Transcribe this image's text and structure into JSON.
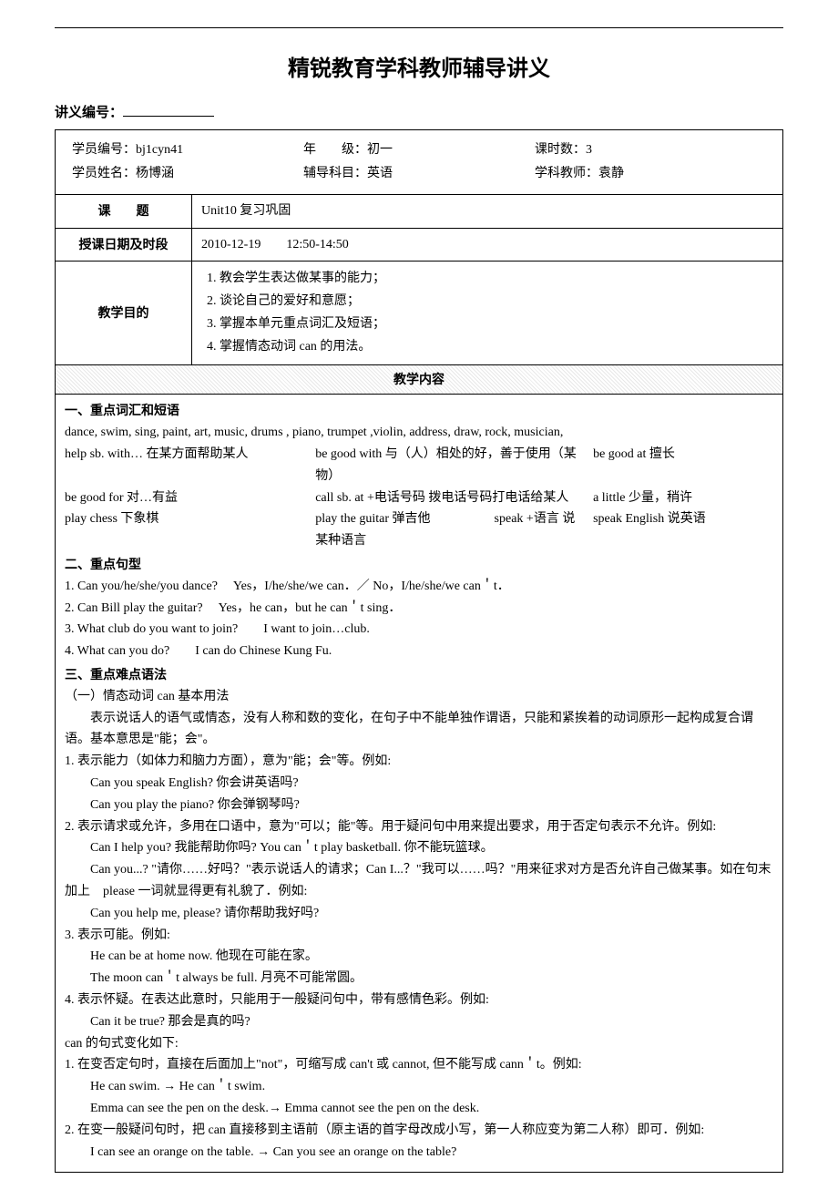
{
  "title": "精锐教育学科教师辅导讲义",
  "serial_label": "讲义编号：",
  "info": {
    "student_id_label": "学员编号：",
    "student_id": "bj1cyn41",
    "grade_label": "年　　级：",
    "grade": "初一",
    "hours_label": "课时数：",
    "hours": "3",
    "student_name_label": "学员姓名：",
    "student_name": "杨博涵",
    "subject_label": "辅导科目：",
    "subject": "英语",
    "teacher_label": "学科教师：",
    "teacher": "袁静"
  },
  "row_topic": {
    "label": "课　　题",
    "value": "Unit10 复习巩固"
  },
  "row_time": {
    "label": "授课日期及时段",
    "value": "2010-12-19　　12:50-14:50"
  },
  "row_goal": {
    "label": "教学目的",
    "items": [
      "1.  教会学生表达做某事的能力；",
      "2.  谈论自己的爱好和意愿；",
      "3.  掌握本单元重点词汇及短语；",
      "4.  掌握情态动词 can 的用法。"
    ]
  },
  "section_header": "教学内容",
  "sec1": {
    "title": "一、重点词汇和短语",
    "vocab_line": "dance, swim, sing, paint, art, music, drums , piano, trumpet ,violin, address, draw, rock, musician,",
    "phrases": [
      [
        "help sb. with… 在某方面帮助某人",
        "be good with 与（人）相处的好，善于使用（某物）",
        "be good at 擅长"
      ],
      [
        "be good for 对…有益",
        "call sb. at +电话号码 拨电话号码打电话给某人",
        "a little 少量，稍许"
      ],
      [
        "play chess 下象棋",
        "play the guitar 弹吉他　　　　　speak +语言 说某种语言",
        "speak English 说英语"
      ]
    ]
  },
  "sec2": {
    "title": "二、重点句型",
    "lines": [
      "1. Can you/he/she/you dance?　 Yes，I/he/she/we can．／ No，I/he/she/we can＇t．",
      "2. Can Bill play the guitar?　 Yes，he can，but he can＇t sing．",
      "3. What club do you want to join?　　I want to join…club.",
      "4. What can you do?　　I can do Chinese Kung Fu."
    ]
  },
  "sec3": {
    "title": "三、重点难点语法",
    "sub1_title": "（一）情态动词 can 基本用法",
    "sub1_intro": "表示说话人的语气或情态，没有人称和数的变化，在句子中不能单独作谓语，只能和紧挨着的动词原形一起构成复合谓语。基本意思是\"能；会\"。",
    "items": [
      {
        "head": "1.  表示能力（如体力和脑力方面），意为\"能；会\"等。例如:",
        "body": [
          "Can you speak English? 你会讲英语吗?",
          "Can you play the piano? 你会弹钢琴吗?"
        ]
      },
      {
        "head": "2.  表示请求或允许，多用在口语中，意为\"可以；能\"等。用于疑问句中用来提出要求，用于否定句表示不允许。例如:",
        "body": [
          "Can I help you? 我能帮助你吗? You can＇t play basketball. 你不能玩篮球。",
          "Can you...? \"请你……好吗？\"表示说话人的请求；Can I...？\"我可以……吗？\"用来征求对方是否允许自己做某事。如在句末加上　please 一词就显得更有礼貌了．例如:",
          "Can you help me, please? 请你帮助我好吗?"
        ]
      },
      {
        "head": "3.  表示可能。例如:",
        "body": [
          "He can be at home now.  他现在可能在家。",
          "The moon can＇t always be full. 月亮不可能常圆。"
        ]
      },
      {
        "head": "4.  表示怀疑。在表达此意时，只能用于一般疑问句中，带有感情色彩。例如:",
        "body": [
          "Can it be true? 那会是真的吗?"
        ]
      }
    ],
    "sub2_title": "can 的句式变化如下:",
    "sub2_items": [
      {
        "head": "1.  在变否定句时，直接在后面加上\"not\"，可缩写成 can't 或 cannot, 但不能写成 cann＇t。例如:",
        "body": [
          "He can swim.  →  He can＇t swim.",
          "Emma can see the pen on the desk.→  Emma cannot see the pen on the desk."
        ]
      },
      {
        "head": "2.  在变一般疑问句时，把 can 直接移到主语前（原主语的首字母改成小写，第一人称应变为第二人称）即可．例如:",
        "body": [
          "I can see an orange on the table.  →  Can you see an orange on the table?"
        ]
      }
    ]
  }
}
